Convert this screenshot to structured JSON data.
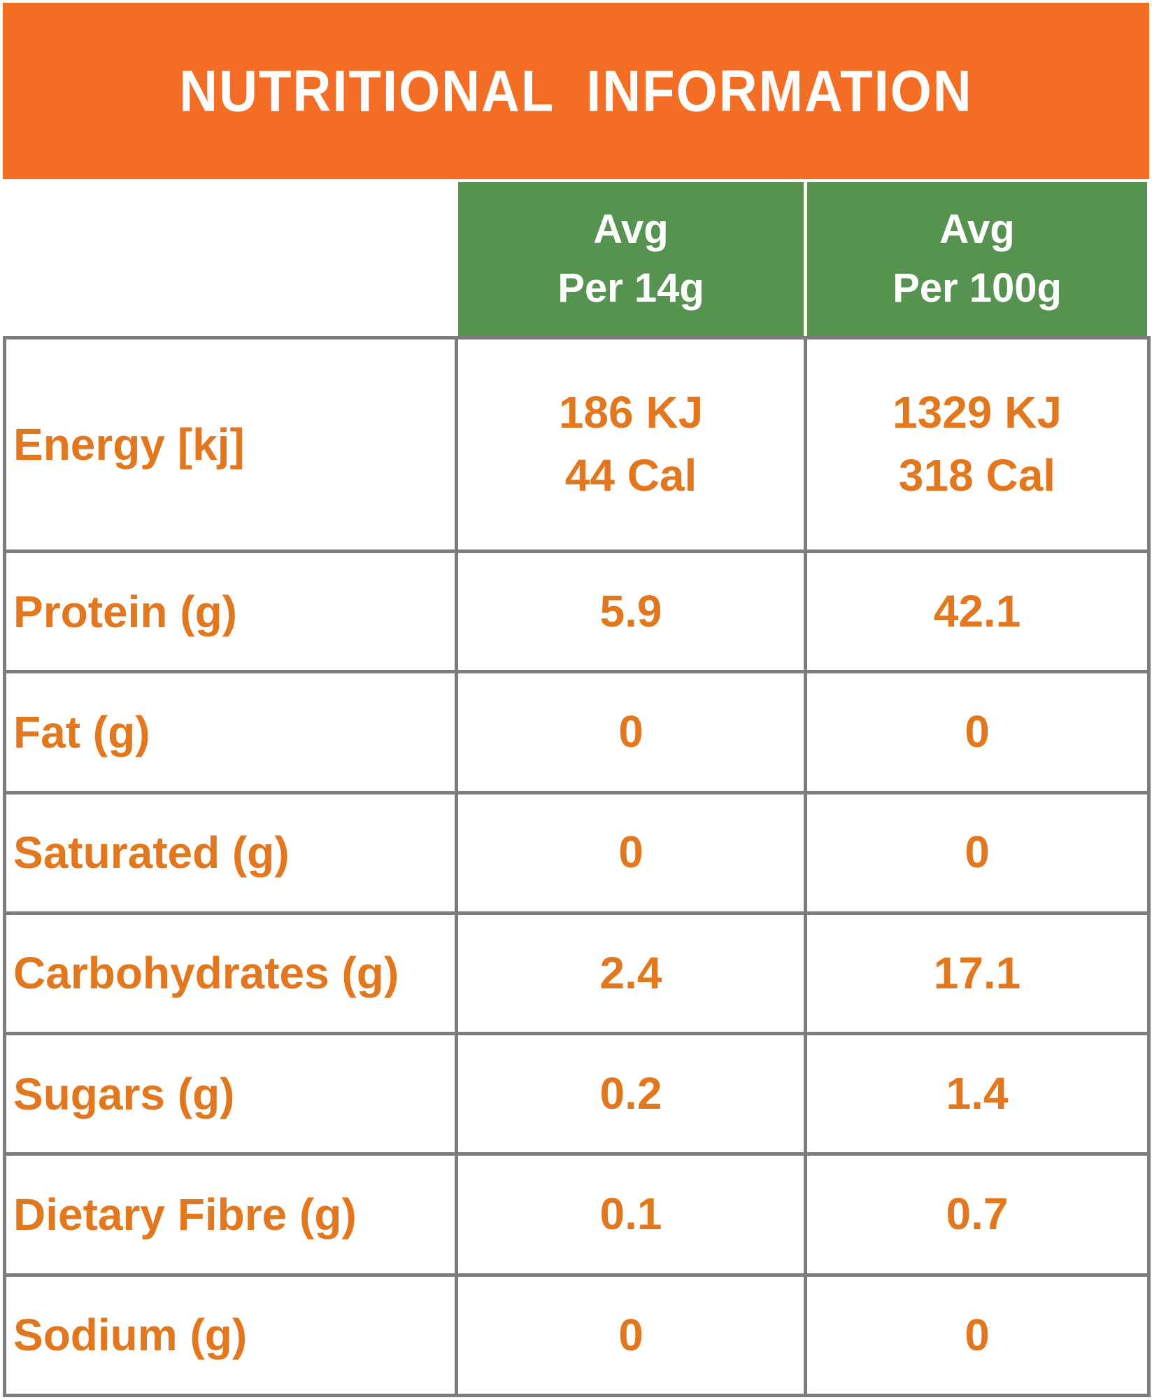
{
  "header": {
    "title": "NUTRITIONAL  INFORMATION"
  },
  "columns": [
    {
      "line1": "Avg",
      "line2": "Per 14g"
    },
    {
      "line1": "Avg",
      "line2": "Per 100g"
    }
  ],
  "table": {
    "rows": [
      {
        "label": "Energy [kj]",
        "per14g": "186 KJ\n44 Cal",
        "per100g": "1329 KJ\n318 Cal"
      },
      {
        "label": "Protein (g)",
        "per14g": "5.9",
        "per100g": "42.1"
      },
      {
        "label": "Fat (g)",
        "per14g": "0",
        "per100g": "0"
      },
      {
        "label": "Saturated (g)",
        "per14g": "0",
        "per100g": "0"
      },
      {
        "label": "Carbohydrates (g)",
        "per14g": "2.4",
        "per100g": "17.1"
      },
      {
        "label": "Sugars (g)",
        "per14g": "0.2",
        "per100g": "1.4"
      },
      {
        "label": "Dietary Fibre (g)",
        "per14g": "0.1",
        "per100g": "0.7"
      },
      {
        "label": "Sodium (g)",
        "per14g": "0",
        "per100g": "0"
      }
    ]
  },
  "colors": {
    "banner_orange": "#F36E24",
    "header_green": "#579350",
    "text_orange": "#E2771D",
    "grid_gray": "#7C7C7C",
    "background": "#FFFFFF"
  }
}
